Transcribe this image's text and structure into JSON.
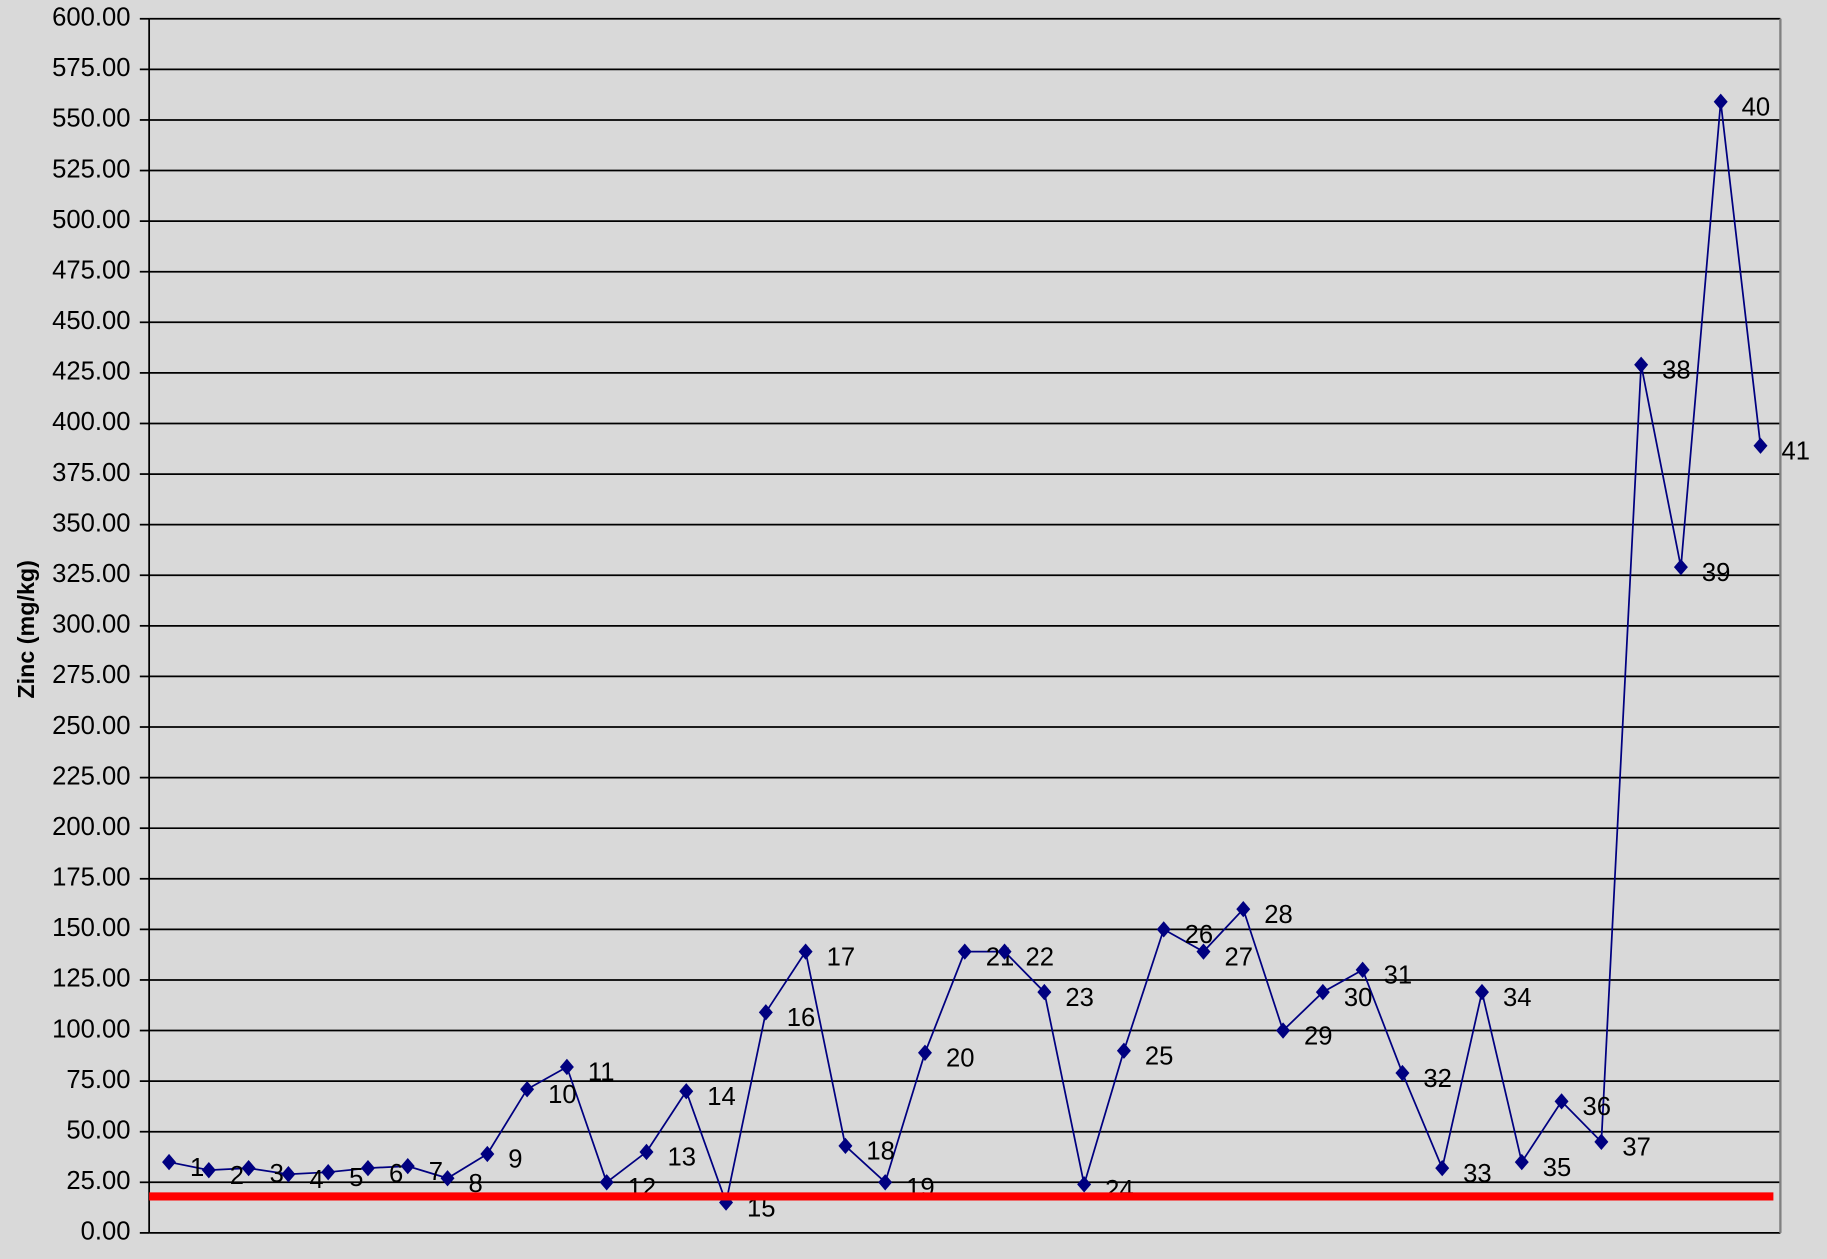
{
  "chart_data": {
    "type": "line",
    "y_label": "Zinc (mg/kg)",
    "categories": [
      "1",
      "2",
      "3",
      "4",
      "5",
      "6",
      "7",
      "8",
      "9",
      "10",
      "11",
      "12",
      "13",
      "14",
      "15",
      "16",
      "17",
      "18",
      "19",
      "20",
      "21",
      "22",
      "23",
      "24",
      "25",
      "26",
      "27",
      "28",
      "29",
      "30",
      "31",
      "32",
      "33",
      "34",
      "35",
      "36",
      "37",
      "38",
      "39",
      "40",
      "41"
    ],
    "series": [
      {
        "color": "#000080",
        "values": [
          35,
          31,
          32,
          29,
          30,
          32,
          33,
          27,
          39,
          71,
          82,
          25,
          40,
          70,
          15,
          109,
          139,
          43,
          25,
          89,
          139,
          139,
          119,
          24,
          90,
          150,
          139,
          160,
          100,
          119,
          130,
          79,
          32,
          119,
          35,
          65,
          45,
          429,
          329,
          559,
          389
        ]
      }
    ],
    "reference_line": {
      "value": 18,
      "color": "#ff0000"
    },
    "ylim": [
      0,
      600
    ],
    "yticks": [
      {
        "value": 0,
        "label": "0.00"
      },
      {
        "value": 25,
        "label": "25.00"
      },
      {
        "value": 50,
        "label": "50.00"
      },
      {
        "value": 75,
        "label": "75.00"
      },
      {
        "value": 100,
        "label": "100.00"
      },
      {
        "value": 125,
        "label": "125.00"
      },
      {
        "value": 150,
        "label": "150.00"
      },
      {
        "value": 175,
        "label": "175.00"
      },
      {
        "value": 200,
        "label": "200.00"
      },
      {
        "value": 225,
        "label": "225.00"
      },
      {
        "value": 250,
        "label": "250.00"
      },
      {
        "value": 275,
        "label": "275.00"
      },
      {
        "value": 300,
        "label": "300.00"
      },
      {
        "value": 325,
        "label": "325.00"
      },
      {
        "value": 350,
        "label": "350.00"
      },
      {
        "value": 375,
        "label": "375.00"
      },
      {
        "value": 400,
        "label": "400.00"
      },
      {
        "value": 425,
        "label": "425.00"
      },
      {
        "value": 450,
        "label": "450.00"
      },
      {
        "value": 475,
        "label": "475.00"
      },
      {
        "value": 500,
        "label": "500.00"
      },
      {
        "value": 525,
        "label": "525.00"
      },
      {
        "value": 550,
        "label": "550.00"
      },
      {
        "value": 575,
        "label": "575.00"
      },
      {
        "value": 600,
        "label": "600.00"
      }
    ],
    "grid": true
  }
}
